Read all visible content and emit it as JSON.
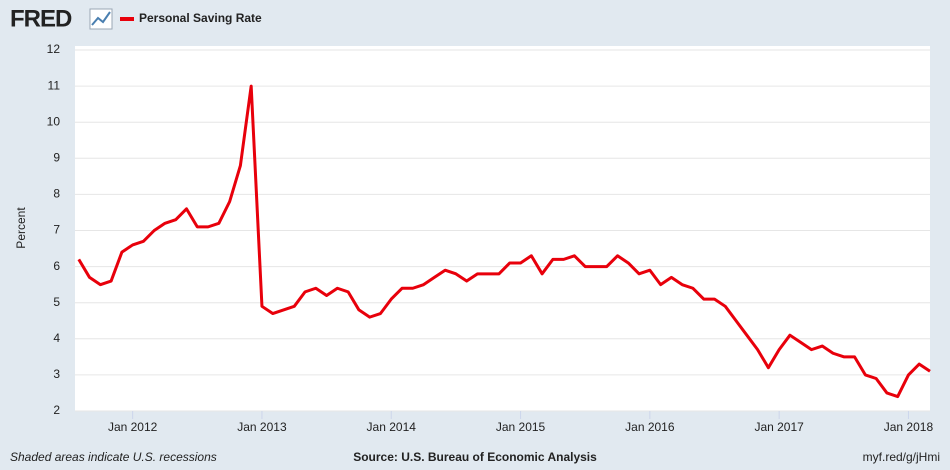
{
  "chart_data": {
    "type": "line",
    "logo": "FRED",
    "ylabel": "Percent",
    "note": "Shaded areas indicate U.S. recessions",
    "source": "Source: U.S. Bureau of Economic Analysis",
    "link": "myf.red/g/jHmi",
    "x": [
      "2011-08",
      "2011-09",
      "2011-10",
      "2011-11",
      "2011-12",
      "2012-01",
      "2012-02",
      "2012-03",
      "2012-04",
      "2012-05",
      "2012-06",
      "2012-07",
      "2012-08",
      "2012-09",
      "2012-10",
      "2012-11",
      "2012-12",
      "2013-01",
      "2013-02",
      "2013-03",
      "2013-04",
      "2013-05",
      "2013-06",
      "2013-07",
      "2013-08",
      "2013-09",
      "2013-10",
      "2013-11",
      "2013-12",
      "2014-01",
      "2014-02",
      "2014-03",
      "2014-04",
      "2014-05",
      "2014-06",
      "2014-07",
      "2014-08",
      "2014-09",
      "2014-10",
      "2014-11",
      "2014-12",
      "2015-01",
      "2015-02",
      "2015-03",
      "2015-04",
      "2015-05",
      "2015-06",
      "2015-07",
      "2015-08",
      "2015-09",
      "2015-10",
      "2015-11",
      "2015-12",
      "2016-01",
      "2016-02",
      "2016-03",
      "2016-04",
      "2016-05",
      "2016-06",
      "2016-07",
      "2016-08",
      "2016-09",
      "2016-10",
      "2016-11",
      "2016-12",
      "2017-01",
      "2017-02",
      "2017-03",
      "2017-04",
      "2017-05",
      "2017-06",
      "2017-07",
      "2017-08",
      "2017-09",
      "2017-10",
      "2017-11",
      "2017-12",
      "2018-01",
      "2018-02",
      "2018-03"
    ],
    "series": [
      {
        "name": "Personal Saving Rate",
        "color": "#e8000b",
        "values": [
          6.2,
          5.7,
          5.5,
          5.6,
          6.4,
          6.6,
          6.7,
          7.0,
          7.2,
          7.3,
          7.6,
          7.1,
          7.1,
          7.2,
          7.8,
          8.8,
          11.0,
          4.9,
          4.7,
          4.8,
          4.9,
          5.3,
          5.4,
          5.2,
          5.4,
          5.3,
          4.8,
          4.6,
          4.7,
          5.1,
          5.4,
          5.4,
          5.5,
          5.7,
          5.9,
          5.8,
          5.6,
          5.8,
          5.8,
          5.8,
          6.1,
          6.1,
          6.3,
          5.8,
          6.2,
          6.2,
          6.3,
          6.0,
          6.0,
          6.0,
          6.3,
          6.1,
          5.8,
          5.9,
          5.5,
          5.7,
          5.5,
          5.4,
          5.1,
          5.1,
          4.9,
          4.5,
          4.1,
          3.7,
          3.2,
          3.7,
          4.1,
          3.9,
          3.7,
          3.8,
          3.6,
          3.5,
          3.5,
          3.0,
          2.9,
          2.5,
          2.4,
          3.0,
          3.3,
          3.1
        ]
      }
    ],
    "xlim": [
      "2011-07",
      "2018-03"
    ],
    "xticks": [
      {
        "value": "2012-01",
        "label": "Jan 2012"
      },
      {
        "value": "2013-01",
        "label": "Jan 2013"
      },
      {
        "value": "2014-01",
        "label": "Jan 2014"
      },
      {
        "value": "2015-01",
        "label": "Jan 2015"
      },
      {
        "value": "2016-01",
        "label": "Jan 2016"
      },
      {
        "value": "2017-01",
        "label": "Jan 2017"
      },
      {
        "value": "2018-01",
        "label": "Jan 2018"
      }
    ],
    "ylim": [
      2,
      12
    ],
    "yticks": [
      2,
      3,
      4,
      5,
      6,
      7,
      8,
      9,
      10,
      11,
      12
    ],
    "grid": true
  }
}
